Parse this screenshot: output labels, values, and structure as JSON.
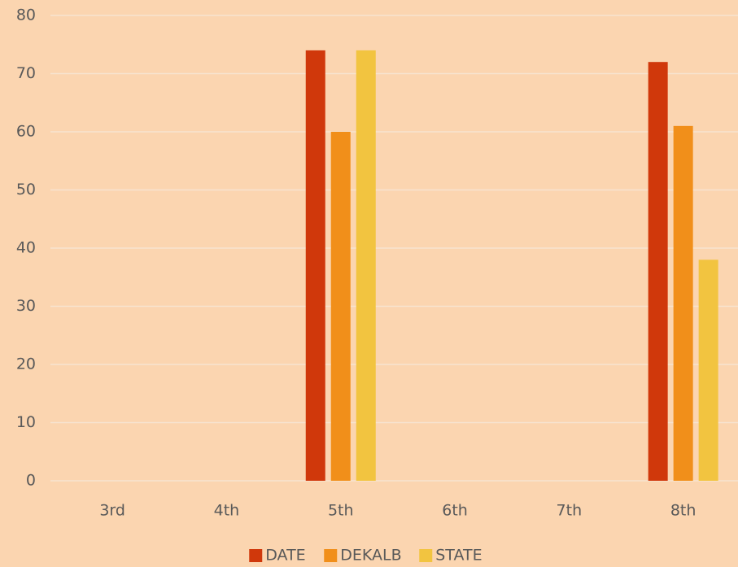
{
  "chart_data": {
    "type": "bar",
    "categories": [
      "3rd",
      "4th",
      "5th",
      "6th",
      "7th",
      "8th"
    ],
    "series": [
      {
        "name": "DATE",
        "color": "#d0380b",
        "values": [
          null,
          null,
          74,
          null,
          null,
          72
        ]
      },
      {
        "name": "DEKALB",
        "color": "#f18f1a",
        "values": [
          null,
          null,
          60,
          null,
          null,
          61
        ]
      },
      {
        "name": "STATE",
        "color": "#f2c440",
        "values": [
          null,
          null,
          74,
          null,
          null,
          38
        ]
      }
    ],
    "ylim": [
      0,
      80
    ],
    "yticks": [
      0,
      10,
      20,
      30,
      40,
      50,
      60,
      70,
      80
    ],
    "grid": true,
    "legend": "bottom"
  }
}
